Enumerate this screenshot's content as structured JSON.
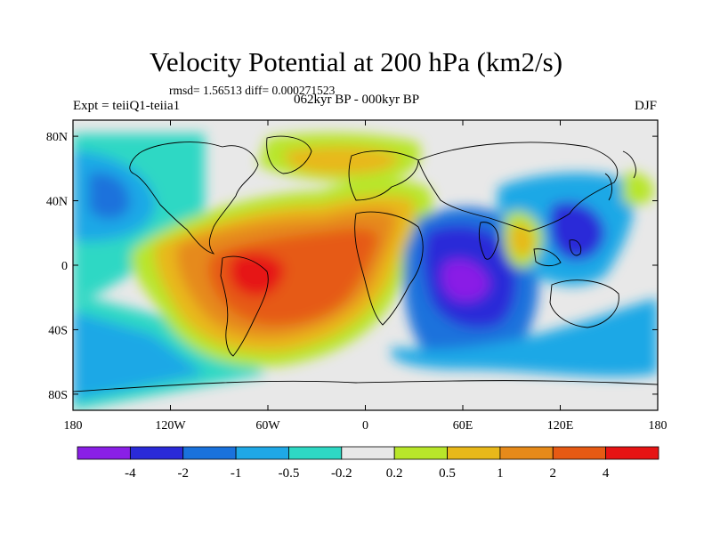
{
  "title": "Velocity Potential at 200 hPa (km2/s)",
  "stats_text": "rmsd= 1.56513 diff= 0.000271523",
  "left_label": "Expt = teiiQ1-teiia1",
  "center_label": "062kyr BP - 000kyr BP",
  "right_label": "DJF",
  "lat_ticks": [
    "80N",
    "40N",
    "0",
    "40S",
    "80S"
  ],
  "lon_ticks": [
    "180",
    "120W",
    "60W",
    "0",
    "60E",
    "120E",
    "180"
  ],
  "colorbar": {
    "colors": [
      "#8a1fe6",
      "#2a2ad8",
      "#1a72dc",
      "#1fa8e6",
      "#2ed8c4",
      "#e8e8e8",
      "#b8e62a",
      "#e8b81a",
      "#e68a1a",
      "#e65a14",
      "#e61414"
    ],
    "labels": [
      "-4",
      "-2",
      "-1",
      "-0.5",
      "-0.2",
      "0.2",
      "0.5",
      "1",
      "2",
      "4"
    ]
  },
  "colors": {
    "land_outline": "#000000",
    "frame": "#000000"
  }
}
